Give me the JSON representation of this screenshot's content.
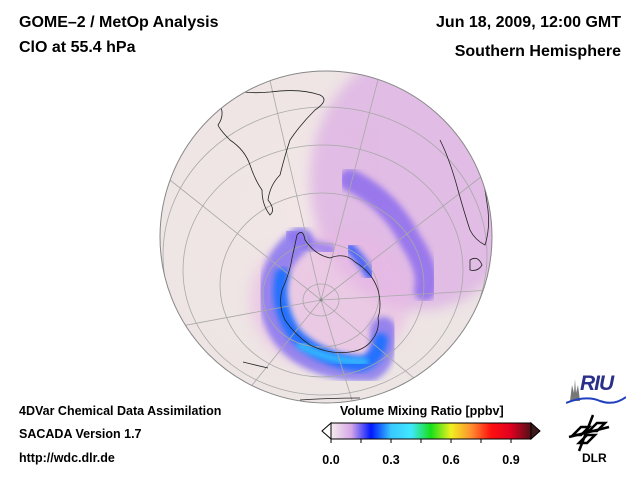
{
  "header": {
    "title_line1": "GOME–2 / MetOp Analysis",
    "title_line2": "ClO at 55.4 hPa",
    "date": "Jun 18, 2009, 12:00 GMT",
    "region": "Southern Hemisphere"
  },
  "footer": {
    "line1": "4DVar Chemical Data Assimilation",
    "line2": "SACADA Version 1.7",
    "line3": "http://wdc.dlr.de"
  },
  "colorbar": {
    "title": "Volume Mixing Ratio [ppbv]",
    "ticks": [
      "0.0",
      "0.3",
      "0.6",
      "0.9"
    ],
    "tick_values": [
      0.0,
      0.3,
      0.6,
      0.9
    ],
    "range": [
      0.0,
      1.0
    ],
    "extend": "both",
    "colors": [
      "#f4ecec",
      "#d8a8e8",
      "#0018ff",
      "#38c8ff",
      "#40e8ff",
      "#18e018",
      "#f0f020",
      "#ff9030",
      "#ff1010",
      "#e00020",
      "#501018"
    ]
  },
  "logos": {
    "riu": "RIU",
    "dlr": "DLR"
  },
  "chart_data": {
    "type": "heatmap",
    "projection": "orthographic",
    "hemisphere": "Southern Hemisphere",
    "title": "GOME–2 / MetOp Analysis — ClO at 55.4 hPa",
    "variable": "ClO volume mixing ratio",
    "units": "ppbv",
    "colorbar_range": [
      0.0,
      1.0
    ],
    "features": [
      {
        "name": "antarctic-polar-vortex-edge",
        "description": "enhanced ClO ring around Antarctica, strongest on Atlantic/Indian side",
        "approx_max": 0.35
      },
      {
        "name": "south-atlantic-filament",
        "description": "diffuse elongated band extending north-east toward southern Africa",
        "approx_max": 0.12
      }
    ],
    "background_value": 0.0
  }
}
